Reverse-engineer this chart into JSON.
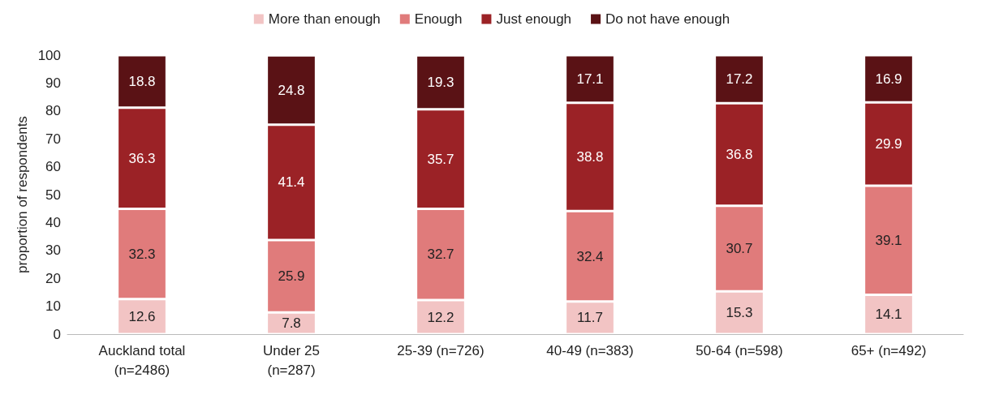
{
  "chart_data": {
    "type": "bar",
    "stacked": true,
    "ylabel": "proportion of respondents",
    "categories": [
      "Auckland total\n(n=2486)",
      "Under 25\n(n=287)",
      "25-39 (n=726)",
      "40-49 (n=383)",
      "50-64 (n=598)",
      "65+ (n=492)"
    ],
    "series": [
      {
        "name": "More than enough",
        "color": "#f2c4c4",
        "values": [
          12.6,
          7.8,
          12.2,
          11.7,
          15.3,
          14.1
        ]
      },
      {
        "name": "Enough",
        "color": "#e07b7b",
        "values": [
          32.3,
          25.9,
          32.7,
          32.4,
          30.7,
          39.1
        ]
      },
      {
        "name": "Just enough",
        "color": "#9b2226",
        "values": [
          36.3,
          41.4,
          35.7,
          38.8,
          36.8,
          29.9
        ]
      },
      {
        "name": "Do not have enough",
        "color": "#5a1215",
        "values": [
          18.8,
          24.8,
          19.3,
          17.1,
          17.2,
          16.9
        ]
      }
    ],
    "ylim": [
      0,
      100
    ],
    "yticks": [
      0,
      10,
      20,
      30,
      40,
      50,
      60,
      70,
      80,
      90,
      100
    ],
    "grid": false,
    "legend": "top",
    "data_labels": true
  }
}
